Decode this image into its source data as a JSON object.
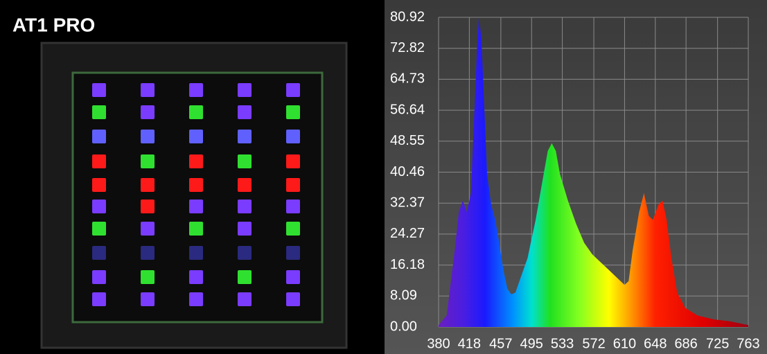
{
  "chart_data": {
    "type": "area",
    "title": "AT1 PRO",
    "x": [
      380,
      390,
      400,
      405,
      410,
      415,
      420,
      425,
      428,
      430,
      433,
      437,
      440,
      445,
      450,
      455,
      460,
      465,
      470,
      475,
      480,
      490,
      500,
      510,
      515,
      520,
      525,
      530,
      540,
      550,
      560,
      570,
      580,
      590,
      600,
      610,
      615,
      620,
      628,
      634,
      640,
      645,
      652,
      657,
      662,
      668,
      675,
      685,
      700,
      720,
      740,
      763
    ],
    "values": [
      0.5,
      3,
      20,
      30,
      33,
      30,
      35,
      60,
      75,
      80.9,
      75,
      55,
      40,
      32,
      28,
      22,
      15,
      10,
      8.5,
      9,
      12,
      18,
      28,
      40,
      46,
      48,
      46,
      40,
      33,
      27,
      22,
      19,
      17,
      15,
      13,
      11,
      12,
      20,
      30,
      35,
      29,
      28,
      32,
      33,
      28,
      18,
      9,
      5,
      3,
      2,
      1.5,
      0.5
    ],
    "xlim": [
      380,
      763
    ],
    "xticks": [
      380,
      418,
      457,
      495,
      533,
      572,
      610,
      648,
      686,
      725,
      763
    ],
    "ylim": [
      0,
      80.92
    ],
    "yticks": [
      {
        "value": 0,
        "label": "0.00"
      },
      8.09,
      16.18,
      24.27,
      32.37,
      40.46,
      48.55,
      56.64,
      64.73,
      72.82,
      80.92
    ],
    "grid": true
  }
}
